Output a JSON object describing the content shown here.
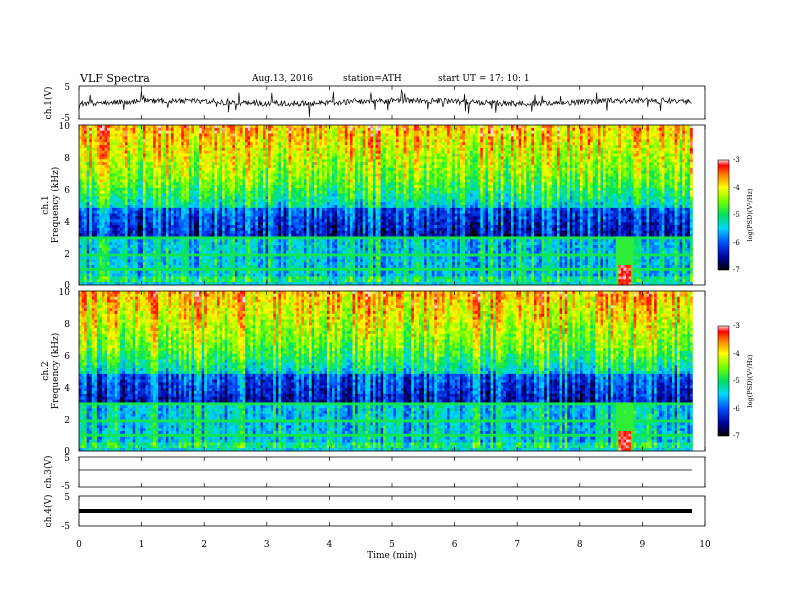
{
  "header": {
    "title": "VLF  Spectra",
    "date": "Aug.13, 2016",
    "station": "station=ATH",
    "start": "start  UT  =    17: 10: 1"
  },
  "chart_data": [
    {
      "type": "line",
      "name": "ch.1 waveform",
      "ylabel": "ch.1(V)",
      "ylim": [
        -5,
        5
      ],
      "yticks": [
        "5",
        "-5"
      ],
      "xlim": [
        0,
        10
      ]
    },
    {
      "type": "heatmap",
      "name": "ch.1 spectrogram",
      "ylabel_channel": "ch.1",
      "ylabel": "Frequency  (kHz)",
      "ylim": [
        0,
        10
      ],
      "yticks": [
        "10",
        "8",
        "6",
        "4",
        "2",
        "0"
      ],
      "colorbar": {
        "label": "log(PSD)(V²/Hz)",
        "range": [
          -7,
          -3
        ],
        "ticks": [
          "-3",
          "-4",
          "-5",
          "-6",
          "-7"
        ]
      },
      "features": {
        "event_time_min": 8.72,
        "event_freq_khz": [
          0,
          1.2
        ]
      }
    },
    {
      "type": "heatmap",
      "name": "ch.2 spectrogram",
      "ylabel_channel": "ch.2",
      "ylabel": "Frequency  (kHz)",
      "ylim": [
        0,
        10
      ],
      "yticks": [
        "10",
        "8",
        "6",
        "4",
        "2",
        "0"
      ],
      "colorbar": {
        "label": "log(PSD)(V²/Hz)",
        "range": [
          -7,
          -3
        ],
        "ticks": [
          "-3",
          "-4",
          "-5",
          "-6",
          "-7"
        ]
      },
      "features": {
        "event_time_min": 8.72,
        "event_freq_khz": [
          0,
          1.2
        ]
      }
    },
    {
      "type": "line",
      "name": "ch.3 waveform",
      "ylabel": "ch.3(V)",
      "ylim": [
        -5,
        5
      ],
      "yticks": [
        "5",
        "-5"
      ],
      "values_constant": 0
    },
    {
      "type": "line",
      "name": "ch.4 waveform",
      "ylabel": "ch.4(V)",
      "ylim": [
        -5,
        5
      ],
      "yticks": [
        "5",
        "-5"
      ],
      "values_constant": 0
    }
  ],
  "xaxis": {
    "label": "Time  (min)",
    "range": [
      0,
      10
    ],
    "data_end_min": 9.8,
    "ticks": [
      "0",
      "1",
      "2",
      "3",
      "4",
      "5",
      "6",
      "7",
      "8",
      "9",
      "10"
    ]
  }
}
